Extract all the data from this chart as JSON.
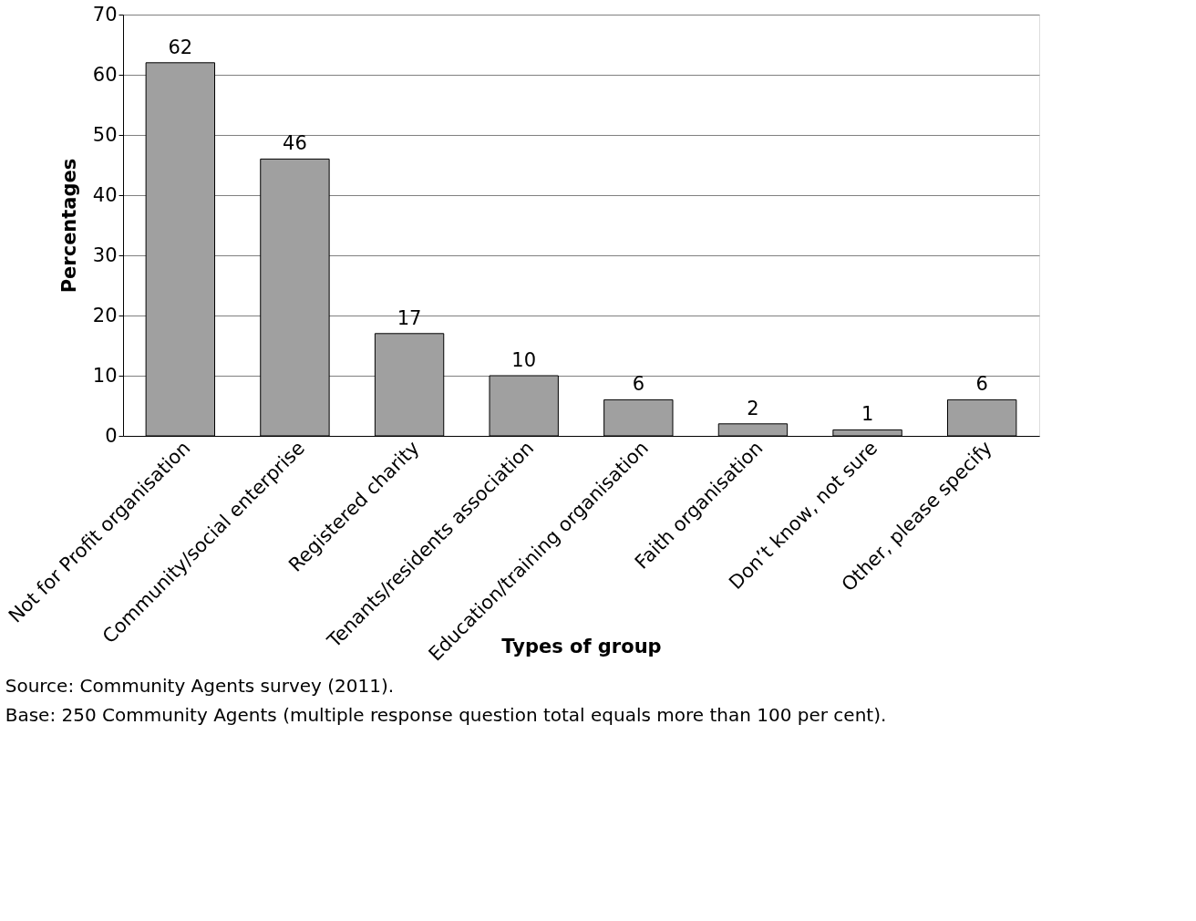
{
  "chart_data": {
    "type": "bar",
    "xlabel": "Types of group",
    "ylabel": "Percentages",
    "categories": [
      "Not for Profit organisation",
      "Community/social enterprise",
      "Registered charity",
      "Tenants/residents association",
      "Education/training organisation",
      "Faith organisation",
      "Don’t know, not sure",
      "Other, please specify"
    ],
    "values": [
      62,
      46,
      17,
      10,
      6,
      2,
      1,
      6
    ],
    "color": "#a0a0a0",
    "ylim": [
      0,
      70
    ],
    "yticks": [
      0,
      10,
      20,
      30,
      40,
      50,
      60,
      70
    ],
    "grid": "y",
    "data_labels": true,
    "annotations": [
      "Source: Community Agents survey (2011).",
      "Base: 250 Community Agents (multiple response question total equals more than 100 per cent)."
    ]
  }
}
